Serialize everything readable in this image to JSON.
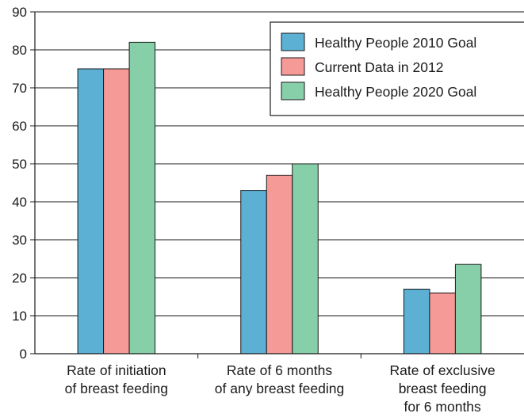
{
  "chart_data": {
    "type": "bar",
    "title": "",
    "xlabel": "",
    "ylabel": "",
    "ylim": [
      0,
      90
    ],
    "yticks": [
      0,
      10,
      20,
      30,
      40,
      50,
      60,
      70,
      80,
      90
    ],
    "grid": true,
    "legend_position": "top-right",
    "categories": [
      [
        "Rate of initiation",
        "of breast feeding"
      ],
      [
        "Rate of 6 months",
        "of any breast feeding"
      ],
      [
        "Rate of exclusive",
        "breast feeding",
        "for 6 months"
      ]
    ],
    "series": [
      {
        "name": "Healthy People 2010 Goal",
        "color": "#5bb0d4",
        "values": [
          75,
          43,
          17
        ]
      },
      {
        "name": "Current Data in 2012",
        "color": "#f59a96",
        "values": [
          75,
          47,
          16
        ]
      },
      {
        "name": "Healthy People 2020 Goal",
        "color": "#86cfa8",
        "values": [
          82,
          50,
          23.5
        ]
      }
    ]
  }
}
